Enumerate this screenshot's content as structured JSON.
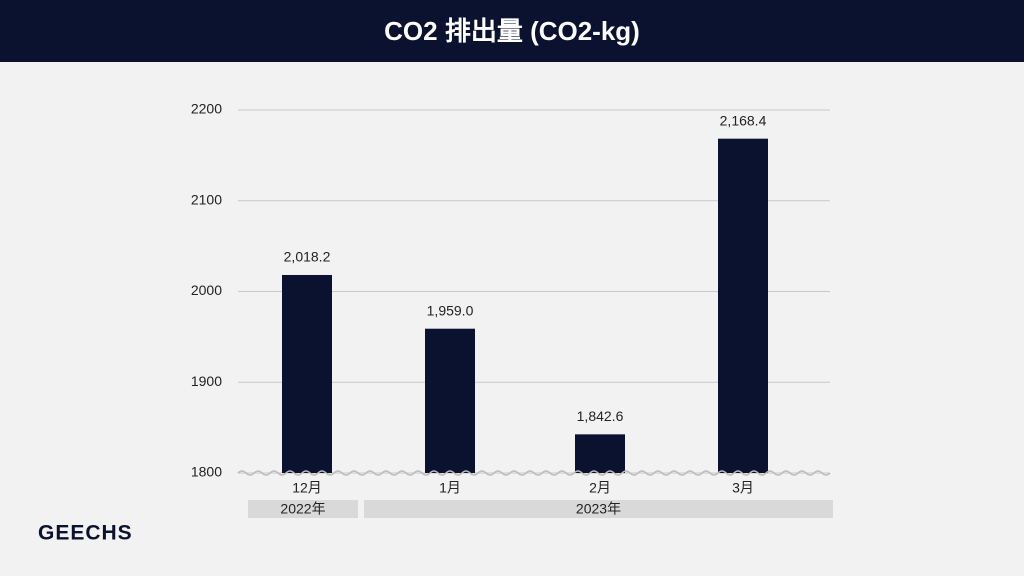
{
  "chart_data": {
    "type": "bar",
    "title": "CO2 排出量 (CO2-kg)",
    "categories": [
      "12月",
      "1月",
      "2月",
      "3月"
    ],
    "values": [
      2018.2,
      1959.0,
      1842.6,
      2168.4
    ],
    "value_labels": [
      "2,018.2",
      "1,959.0",
      "1,842.6",
      "2,168.4"
    ],
    "groups": [
      "2022年",
      "2023年"
    ],
    "color": "#0b1230",
    "ylim": [
      1800,
      2200
    ],
    "yticks": [
      1800,
      1900,
      2000,
      2100,
      2200
    ],
    "grid": true
  },
  "logo": "GEECHS"
}
